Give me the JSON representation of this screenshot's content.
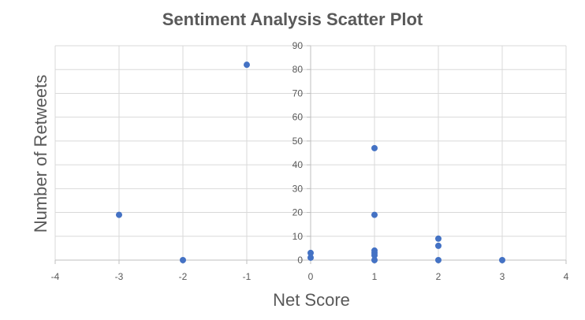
{
  "chart_data": {
    "type": "scatter",
    "title": "Sentiment Analysis Scatter Plot",
    "xlabel": "Net Score",
    "ylabel": "Number of Retweets",
    "xlim": [
      -4,
      4
    ],
    "ylim": [
      0,
      90
    ],
    "x_ticks": [
      -4,
      -3,
      -2,
      -1,
      0,
      1,
      2,
      3,
      4
    ],
    "y_ticks": [
      0,
      10,
      20,
      30,
      40,
      50,
      60,
      70,
      80,
      90
    ],
    "grid": true,
    "legend": "none",
    "point_color": "#4472C4",
    "points": [
      {
        "x": -3,
        "y": 19
      },
      {
        "x": -2,
        "y": 0
      },
      {
        "x": -1,
        "y": 82
      },
      {
        "x": 0,
        "y": 3
      },
      {
        "x": 0,
        "y": 1
      },
      {
        "x": 1,
        "y": 47
      },
      {
        "x": 1,
        "y": 19
      },
      {
        "x": 1,
        "y": 4
      },
      {
        "x": 1,
        "y": 3
      },
      {
        "x": 1,
        "y": 2
      },
      {
        "x": 1,
        "y": 0
      },
      {
        "x": 2,
        "y": 9
      },
      {
        "x": 2,
        "y": 6
      },
      {
        "x": 2,
        "y": 0
      },
      {
        "x": 3,
        "y": 0
      }
    ]
  }
}
